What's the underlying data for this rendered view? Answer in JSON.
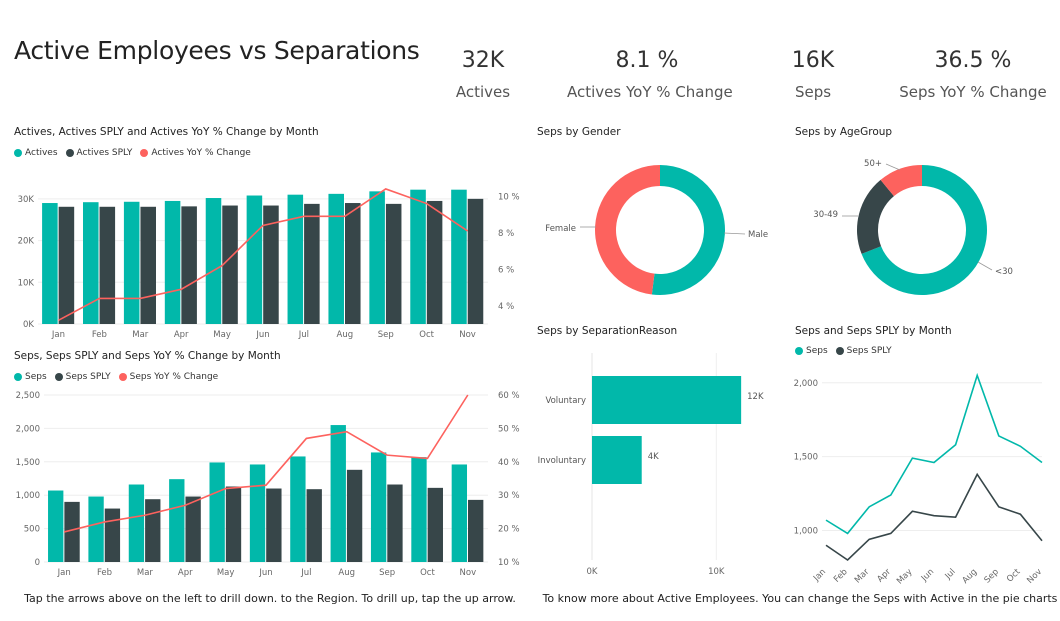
{
  "title": "Active Employees vs Separations",
  "kpis": [
    {
      "value": "32K",
      "label": "Actives"
    },
    {
      "value": "8.1 %",
      "label": "Actives YoY % Change"
    },
    {
      "value": "16K",
      "label": "Seps"
    },
    {
      "value": "36.5 %",
      "label": "Seps YoY % Change"
    }
  ],
  "colors": {
    "teal": "#01B8AA",
    "dark": "#374649",
    "red": "#FD625E"
  },
  "footer": {
    "left": "Tap the arrows above on the left to drill down. to the Region. To drill up, tap the up arrow.",
    "right": "To know more about Active Employees. You can change the Seps with Active in the pie charts"
  },
  "chart_data": [
    {
      "type": "bar",
      "title": "Actives, Actives SPLY and Actives YoY % Change by Month",
      "categories": [
        "Jan",
        "Feb",
        "Mar",
        "Apr",
        "May",
        "Jun",
        "Jul",
        "Aug",
        "Sep",
        "Oct",
        "Nov"
      ],
      "series": [
        {
          "name": "Actives",
          "values": [
            29000,
            29200,
            29300,
            29500,
            30200,
            30800,
            31000,
            31200,
            31800,
            32200,
            32200
          ]
        },
        {
          "name": "Actives SPLY",
          "values": [
            28100,
            28100,
            28100,
            28200,
            28400,
            28400,
            28800,
            29000,
            28800,
            29500,
            30000
          ]
        },
        {
          "name": "Actives YoY % Change",
          "axis": "right",
          "values": [
            3.2,
            4.4,
            4.4,
            4.9,
            6.2,
            8.4,
            8.9,
            8.9,
            10.4,
            9.6,
            8.1
          ]
        }
      ],
      "ylim": [
        0,
        35000
      ],
      "yticks": [
        "0K",
        "10K",
        "20K",
        "30K"
      ],
      "y2lim": [
        3,
        11
      ],
      "y2ticks": [
        "4 %",
        "6 %",
        "8 %",
        "10 %"
      ],
      "legend": "top-left"
    },
    {
      "type": "bar",
      "title": "Seps, Seps SPLY and Seps YoY % Change by Month",
      "categories": [
        "Jan",
        "Feb",
        "Mar",
        "Apr",
        "May",
        "Jun",
        "Jul",
        "Aug",
        "Sep",
        "Oct",
        "Nov"
      ],
      "series": [
        {
          "name": "Seps",
          "values": [
            1070,
            980,
            1160,
            1240,
            1490,
            1460,
            1580,
            2050,
            1640,
            1570,
            1460
          ]
        },
        {
          "name": "Seps SPLY",
          "values": [
            900,
            800,
            940,
            980,
            1130,
            1100,
            1090,
            1380,
            1160,
            1110,
            930
          ]
        },
        {
          "name": "Seps YoY % Change",
          "axis": "right",
          "values": [
            19,
            22,
            24,
            27,
            32,
            33,
            47,
            49,
            42,
            41,
            60
          ]
        }
      ],
      "ylim": [
        0,
        2500
      ],
      "yticks": [
        "0",
        "500",
        "1,000",
        "1,500",
        "2,000",
        "2,500"
      ],
      "y2lim": [
        10,
        60
      ],
      "y2ticks": [
        "10 %",
        "20 %",
        "30 %",
        "40 %",
        "50 %",
        "60 %"
      ],
      "legend": "top-left"
    },
    {
      "type": "pie",
      "title": "Seps by Gender",
      "slices": [
        {
          "label": "Male",
          "value": 52
        },
        {
          "label": "Female",
          "value": 48
        }
      ]
    },
    {
      "type": "pie",
      "title": "Seps by AgeGroup",
      "slices": [
        {
          "label": "<30",
          "value": 69
        },
        {
          "label": "30-49",
          "value": 20
        },
        {
          "label": "50+",
          "value": 11
        }
      ]
    },
    {
      "type": "bar",
      "title": "Seps by SeparationReason",
      "orientation": "horizontal",
      "categories": [
        "Voluntary",
        "Involuntary"
      ],
      "values": [
        12000,
        4000
      ],
      "data_labels": [
        "12K",
        "4K"
      ],
      "xlim": [
        0,
        14000
      ],
      "xticks": [
        "0K",
        "10K"
      ]
    },
    {
      "type": "line",
      "title": "Seps and Seps SPLY by Month",
      "categories": [
        "Jan",
        "Feb",
        "Mar",
        "Apr",
        "May",
        "Jun",
        "Jul",
        "Aug",
        "Sep",
        "Oct",
        "Nov"
      ],
      "series": [
        {
          "name": "Seps",
          "values": [
            1070,
            980,
            1160,
            1240,
            1490,
            1460,
            1580,
            2050,
            1640,
            1570,
            1460
          ]
        },
        {
          "name": "Seps SPLY",
          "values": [
            900,
            800,
            940,
            980,
            1130,
            1100,
            1090,
            1380,
            1160,
            1110,
            930
          ]
        }
      ],
      "ylim": [
        800,
        2100
      ],
      "yticks": [
        "1,000",
        "1,500",
        "2,000"
      ],
      "legend": "top-left"
    }
  ]
}
